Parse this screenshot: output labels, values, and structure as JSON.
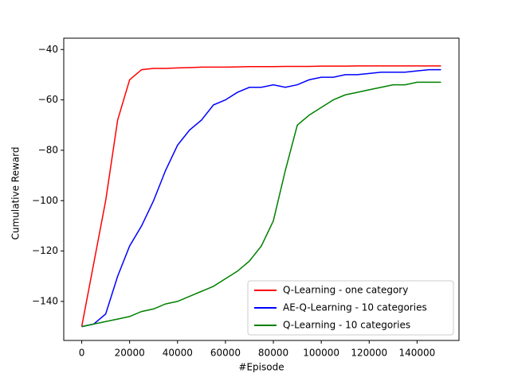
{
  "chart_data": {
    "type": "line",
    "xlabel": "#Episode",
    "ylabel": "Cumulative Reward",
    "x": [
      0,
      5000,
      10000,
      15000,
      20000,
      25000,
      30000,
      35000,
      40000,
      45000,
      50000,
      55000,
      60000,
      65000,
      70000,
      75000,
      80000,
      85000,
      90000,
      95000,
      100000,
      105000,
      110000,
      115000,
      120000,
      125000,
      130000,
      135000,
      140000,
      145000,
      150000
    ],
    "series": [
      {
        "name": "Q-Learning - one category",
        "color": "#ff0000",
        "values": [
          -150,
          -125,
          -100,
          -68,
          -52,
          -48,
          -47.5,
          -47.5,
          -47.3,
          -47.2,
          -47,
          -47,
          -47,
          -46.9,
          -46.8,
          -46.8,
          -46.8,
          -46.7,
          -46.7,
          -46.7,
          -46.6,
          -46.6,
          -46.6,
          -46.5,
          -46.5,
          -46.5,
          -46.5,
          -46.5,
          -46.5,
          -46.5,
          -46.5
        ]
      },
      {
        "name": "AE-Q-Learning - 10 categories",
        "color": "#0000ff",
        "values": [
          -150,
          -149,
          -145,
          -130,
          -118,
          -110,
          -100,
          -88,
          -78,
          -72,
          -68,
          -62,
          -60,
          -57,
          -55,
          -55,
          -54,
          -55,
          -54,
          -52,
          -51,
          -51,
          -50,
          -50,
          -49.5,
          -49,
          -49,
          -49,
          -48.5,
          -48,
          -48
        ]
      },
      {
        "name": "Q-Learning - 10 categories",
        "color": "#008000",
        "values": [
          -150,
          -149,
          -148,
          -147,
          -146,
          -144,
          -143,
          -141,
          -140,
          -138,
          -136,
          -134,
          -131,
          -128,
          -124,
          -118,
          -108,
          -88,
          -70,
          -66,
          -63,
          -60,
          -58,
          -57,
          -56,
          -55,
          -54,
          -54,
          -53,
          -53,
          -53
        ]
      }
    ],
    "xlim": [
      -7500,
      157500
    ],
    "ylim": [
      -155.5,
      -35.5
    ],
    "xticks": [
      0,
      20000,
      40000,
      60000,
      80000,
      100000,
      120000,
      140000
    ],
    "yticks": [
      {
        "value": -40,
        "label": "−40"
      },
      {
        "value": -60,
        "label": "−60"
      },
      {
        "value": -80,
        "label": "−80"
      },
      {
        "value": -100,
        "label": "−100"
      },
      {
        "value": -120,
        "label": "−120"
      },
      {
        "value": -140,
        "label": "−140"
      }
    ],
    "grid": false,
    "legend": "lower right"
  }
}
